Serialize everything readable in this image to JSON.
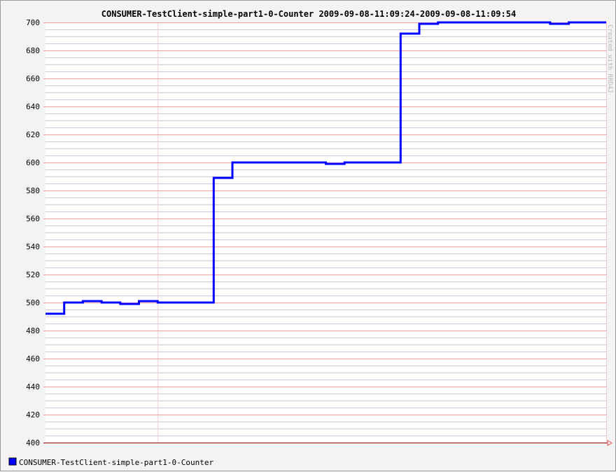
{
  "chart_data": {
    "type": "line",
    "step": true,
    "title": "CONSUMER-TestClient-simple-part1-0-Counter 2009-09-08-11:09:24-2009-09-08-11:09:54",
    "xlabel": "",
    "ylabel": "",
    "ylim": [
      400,
      700
    ],
    "xlim": [
      0,
      30
    ],
    "yticks": [
      400,
      420,
      440,
      460,
      480,
      500,
      520,
      540,
      560,
      580,
      600,
      620,
      640,
      660,
      680,
      700
    ],
    "grid": true,
    "legend_position": "bottom-left",
    "watermark": "Created with RRD4J",
    "series": [
      {
        "name": "CONSUMER-TestClient-simple-part1-0-Counter",
        "color": "#0000ff",
        "x": [
          0,
          1,
          2,
          3,
          4,
          5,
          6,
          7,
          8,
          9,
          10,
          11,
          12,
          13,
          14,
          15,
          16,
          17,
          18,
          19,
          20,
          21,
          22,
          23,
          24,
          25,
          26,
          27,
          28,
          29,
          30
        ],
        "y": [
          492,
          500,
          501,
          500,
          499,
          501,
          500,
          500,
          500,
          589,
          600,
          600,
          600,
          600,
          600,
          599,
          600,
          600,
          600,
          692,
          699,
          700,
          700,
          700,
          700,
          700,
          700,
          699,
          700,
          700,
          700
        ]
      }
    ]
  },
  "colors": {
    "background": "#f3f3f3",
    "plot_background": "#ffffff",
    "minor_grid": "#c8c8dc",
    "major_grid": "#f0a0a0",
    "axis": "#900000"
  }
}
